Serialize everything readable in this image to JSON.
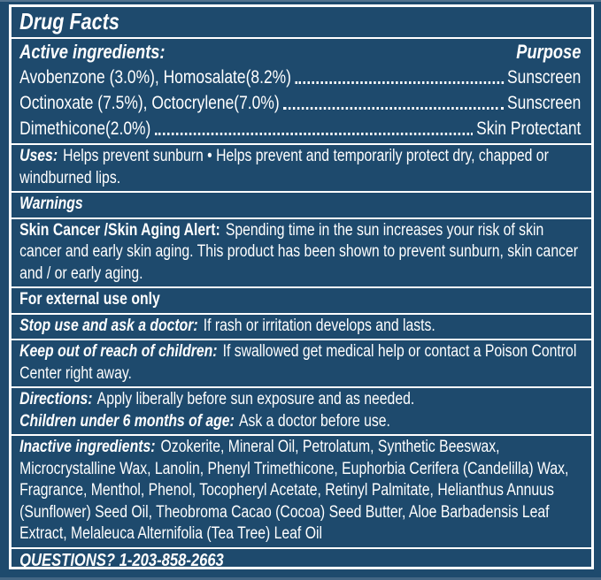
{
  "colors": {
    "background": "#1e4a6d",
    "text": "#ffffff",
    "rule": "#ffffff"
  },
  "header": {
    "title": "Drug Facts"
  },
  "active_ingredients": {
    "heading": "Active ingredients:",
    "purpose_heading": "Purpose",
    "rows": [
      {
        "name": "Avobenzone (3.0%), Homosalate(8.2%)",
        "purpose": "Sunscreen"
      },
      {
        "name": "Octinoxate (7.5%), Octocrylene(7.0%)",
        "purpose": "Sunscreen"
      },
      {
        "name": "Dimethicone(2.0%)",
        "purpose": "Skin Protectant"
      }
    ]
  },
  "uses": {
    "label": "Uses:",
    "text": "Helps prevent sunburn • Helps prevent and temporarily protect dry, chapped or windburned lips."
  },
  "warnings": {
    "heading": "Warnings"
  },
  "skin_alert": {
    "label": "Skin Cancer /Skin Aging Alert:",
    "text": "Spending time in the sun increases your risk of skin cancer and early skin aging. This product has been shown to prevent sunburn, skin cancer and / or early aging."
  },
  "external_use": {
    "text": "For external use only"
  },
  "stop_use": {
    "label": "Stop use and ask a doctor:",
    "text": "If rash or irritation develops and lasts."
  },
  "keep_out": {
    "label": "Keep out of reach of children:",
    "text": "If swallowed get medical help or contact a Poison Control Center right away."
  },
  "directions": {
    "label": "Directions:",
    "text": "Apply liberally before sun exposure and as needed."
  },
  "children": {
    "label": "Children under 6 months of age:",
    "text": "Ask a doctor before use."
  },
  "inactive_ingredients": {
    "label": "Inactive ingredients:",
    "text": "Ozokerite, Mineral Oil, Petrolatum, Synthetic Beeswax, Microcrystalline Wax, Lanolin, Phenyl Trimethicone, Euphorbia Cerifera (Candelilla) Wax, Fragrance, Menthol, Phenol, Tocopheryl Acetate, Retinyl Palmitate, Helianthus Annuus (Sunflower) Seed Oil, Theobroma Cacao (Cocoa) Seed Butter, Aloe Barbadensis Leaf Extract, Melaleuca Alternifolia (Tea Tree) Leaf Oil"
  },
  "questions": {
    "text": "QUESTIONS? 1-203-858-2663"
  }
}
